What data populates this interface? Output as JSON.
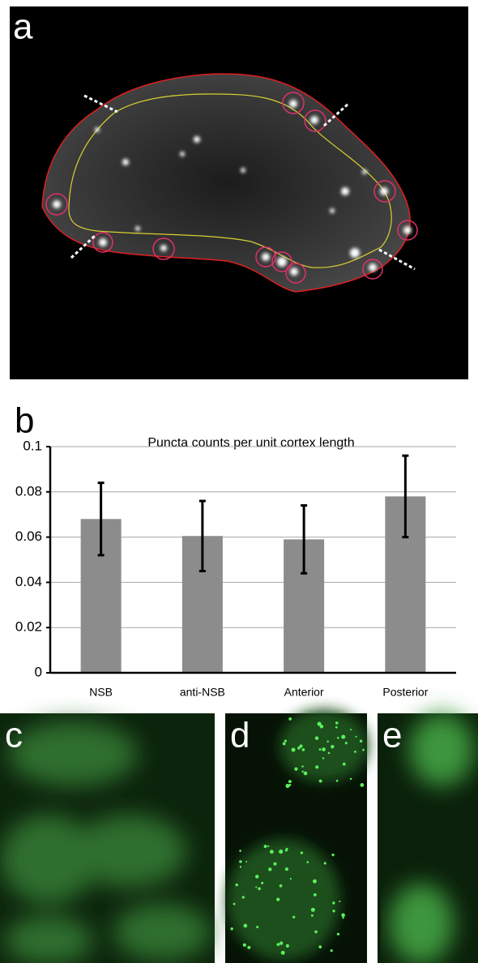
{
  "panels": {
    "a": "a",
    "b": "b",
    "c": "c",
    "d": "d",
    "e": "e"
  },
  "chart_data": {
    "type": "bar",
    "title": "Puncta counts per unit cortex length",
    "categories": [
      "NSB",
      "anti-NSB",
      "Anterior",
      "Posterior"
    ],
    "values": [
      0.068,
      0.0605,
      0.059,
      0.078
    ],
    "errors": [
      0.016,
      0.0155,
      0.015,
      0.018
    ],
    "color": "#8c8c8c",
    "error_color": "#000000",
    "ylim": [
      0,
      0.1
    ],
    "yticks": [
      0,
      0.02,
      0.04,
      0.06,
      0.08,
      0.1
    ],
    "grid": true
  }
}
